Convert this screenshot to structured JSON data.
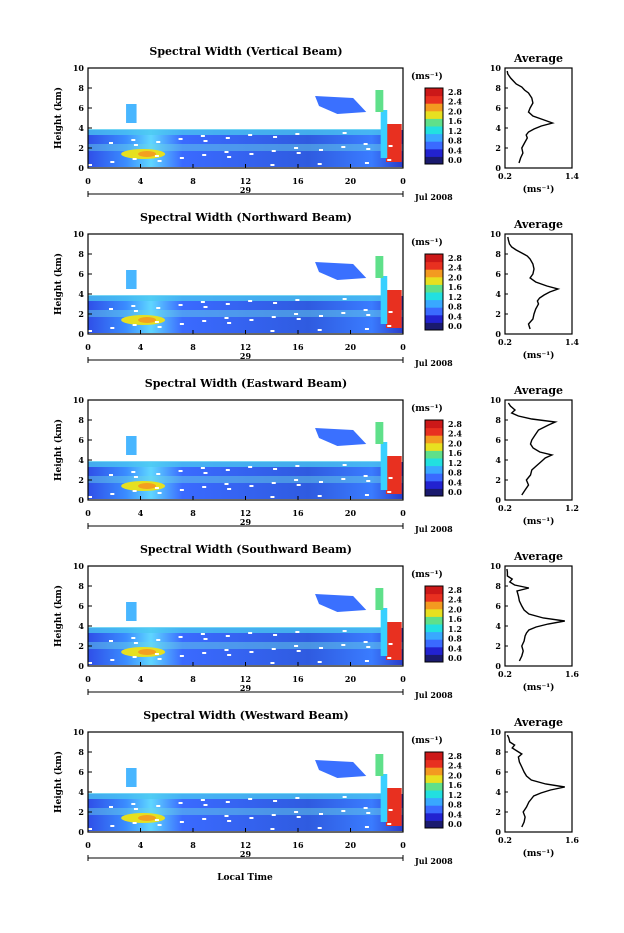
{
  "figure": {
    "bottom_xlabel": "Local Time",
    "unit_label": "(ms⁻¹)",
    "avg_title": "Average"
  },
  "colorbar": {
    "ticks": [
      "2.8",
      "2.4",
      "2.0",
      "1.6",
      "1.2",
      "0.8",
      "0.4",
      "0.0"
    ],
    "colors": [
      "#1a1a6e",
      "#2222d0",
      "#3a6aff",
      "#39a8ff",
      "#22e0e0",
      "#5fe08a",
      "#e8e020",
      "#f39a20",
      "#e83020",
      "#cc1818"
    ]
  },
  "chart_data": [
    {
      "type": "heatmap",
      "title": "Spectral Width (Vertical Beam)",
      "ylabel": "Height (km)",
      "xticks": [
        "0",
        "4",
        "8",
        "12",
        "16",
        "20",
        "0"
      ],
      "day_label": "29",
      "month_label": "Jul 2008",
      "yticks": [
        "0",
        "2",
        "4",
        "6",
        "8",
        "10"
      ],
      "xlim": [
        0,
        24
      ],
      "ylim": [
        0,
        10
      ],
      "avg_profile": {
        "type": "line",
        "title": "Average",
        "xlabel": "(ms⁻¹)",
        "xticks": [
          "0.2",
          "1.4"
        ],
        "xlim": [
          0.2,
          1.4
        ],
        "yticks": [
          "0",
          "2",
          "4",
          "6",
          "8",
          "10"
        ],
        "ylim": [
          0,
          10
        ],
        "x": [
          0.45,
          0.48,
          0.52,
          0.5,
          0.55,
          0.6,
          0.58,
          0.62,
          0.72,
          0.85,
          1.05,
          0.9,
          0.7,
          0.62,
          0.65,
          0.7,
          0.68,
          0.62,
          0.55,
          0.5,
          0.4,
          0.35,
          0.3,
          0.25,
          0.24
        ],
        "y": [
          0.5,
          1.0,
          1.5,
          2.0,
          2.5,
          3.0,
          3.3,
          3.6,
          3.9,
          4.2,
          4.5,
          4.8,
          5.2,
          5.6,
          6.0,
          6.5,
          7.0,
          7.5,
          7.8,
          8.1,
          8.4,
          8.7,
          9.0,
          9.4,
          9.7
        ]
      }
    },
    {
      "type": "heatmap",
      "title": "Spectral Width (Northward Beam)",
      "ylabel": "Height (km)",
      "xticks": [
        "0",
        "4",
        "8",
        "12",
        "16",
        "20",
        "0"
      ],
      "day_label": "29",
      "month_label": "Jul 2008",
      "yticks": [
        "0",
        "2",
        "4",
        "6",
        "8",
        "10"
      ],
      "xlim": [
        0,
        24
      ],
      "ylim": [
        0,
        10
      ],
      "avg_profile": {
        "type": "line",
        "title": "Average",
        "xlabel": "(ms⁻¹)",
        "xticks": [
          "0.2",
          "1.4"
        ],
        "xlim": [
          0.2,
          1.4
        ],
        "yticks": [
          "0",
          "2",
          "4",
          "6",
          "8",
          "10"
        ],
        "ylim": [
          0,
          10
        ],
        "x": [
          0.65,
          0.62,
          0.7,
          0.72,
          0.75,
          0.8,
          0.78,
          0.82,
          0.9,
          1.0,
          1.15,
          0.95,
          0.75,
          0.65,
          0.7,
          0.72,
          0.7,
          0.65,
          0.6,
          0.5,
          0.4,
          0.32,
          0.28,
          0.26,
          0.25
        ],
        "y": [
          0.5,
          1.0,
          1.5,
          2.0,
          2.5,
          3.0,
          3.3,
          3.6,
          3.9,
          4.2,
          4.5,
          4.8,
          5.2,
          5.6,
          6.0,
          6.5,
          7.0,
          7.5,
          7.8,
          8.1,
          8.4,
          8.7,
          9.0,
          9.4,
          9.7
        ]
      }
    },
    {
      "type": "heatmap",
      "title": "Spectral Width (Eastward Beam)",
      "ylabel": "Height (km)",
      "xticks": [
        "0",
        "4",
        "8",
        "12",
        "16",
        "20",
        "0"
      ],
      "day_label": "29",
      "month_label": "Jul 2008",
      "yticks": [
        "0",
        "2",
        "4",
        "6",
        "8",
        "10"
      ],
      "xlim": [
        0,
        24
      ],
      "ylim": [
        0,
        10
      ],
      "avg_profile": {
        "type": "line",
        "title": "Average",
        "xlabel": "(ms⁻¹)",
        "xticks": [
          "0.2",
          "1.2"
        ],
        "xlim": [
          0.2,
          1.2
        ],
        "yticks": [
          "0",
          "2",
          "4",
          "6",
          "8",
          "10"
        ],
        "ylim": [
          0,
          10
        ],
        "x": [
          0.45,
          0.5,
          0.55,
          0.52,
          0.58,
          0.6,
          0.65,
          0.7,
          0.75,
          0.8,
          0.9,
          0.72,
          0.62,
          0.58,
          0.6,
          0.65,
          0.7,
          0.85,
          0.95,
          0.6,
          0.4,
          0.3,
          0.35,
          0.28,
          0.25
        ],
        "y": [
          0.5,
          1.0,
          1.5,
          2.0,
          2.5,
          3.0,
          3.3,
          3.6,
          3.9,
          4.2,
          4.5,
          4.8,
          5.2,
          5.6,
          6.0,
          6.5,
          7.0,
          7.5,
          7.8,
          8.1,
          8.4,
          8.7,
          9.0,
          9.4,
          9.7
        ]
      }
    },
    {
      "type": "heatmap",
      "title": "Spectral Width (Southward Beam)",
      "ylabel": "Height (km)",
      "xticks": [
        "0",
        "4",
        "8",
        "12",
        "16",
        "20",
        "0"
      ],
      "day_label": "29",
      "month_label": "Jul 2008",
      "yticks": [
        "0",
        "2",
        "4",
        "6",
        "8",
        "10"
      ],
      "xlim": [
        0,
        24
      ],
      "ylim": [
        0,
        10
      ],
      "avg_profile": {
        "type": "line",
        "title": "Average",
        "xlabel": "(ms⁻¹)",
        "xticks": [
          "0.2",
          "1.6"
        ],
        "xlim": [
          0.2,
          1.6
        ],
        "yticks": [
          "0",
          "2",
          "4",
          "6",
          "8",
          "10"
        ],
        "ylim": [
          0,
          10
        ],
        "x": [
          0.5,
          0.55,
          0.58,
          0.55,
          0.6,
          0.62,
          0.65,
          0.7,
          0.85,
          1.1,
          1.45,
          1.0,
          0.7,
          0.6,
          0.55,
          0.5,
          0.48,
          0.45,
          0.7,
          0.4,
          0.3,
          0.35,
          0.25,
          0.25,
          0.24
        ],
        "y": [
          0.5,
          1.0,
          1.5,
          2.0,
          2.5,
          3.0,
          3.3,
          3.6,
          3.9,
          4.2,
          4.5,
          4.8,
          5.2,
          5.6,
          6.0,
          6.5,
          7.0,
          7.5,
          7.8,
          8.1,
          8.4,
          8.7,
          9.0,
          9.4,
          9.7
        ]
      }
    },
    {
      "type": "heatmap",
      "title": "Spectral Width (Westward Beam)",
      "ylabel": "Height (km)",
      "xticks": [
        "0",
        "4",
        "8",
        "12",
        "16",
        "20",
        "0"
      ],
      "day_label": "29",
      "month_label": "Jul 2008",
      "yticks": [
        "0",
        "2",
        "4",
        "6",
        "8",
        "10"
      ],
      "xlim": [
        0,
        24
      ],
      "ylim": [
        0,
        10
      ],
      "avg_profile": {
        "type": "line",
        "title": "Average",
        "xlabel": "(ms⁻¹)",
        "xticks": [
          "0.2",
          "1.6"
        ],
        "xlim": [
          0.2,
          1.6
        ],
        "yticks": [
          "0",
          "2",
          "4",
          "6",
          "8",
          "10"
        ],
        "ylim": [
          0,
          10
        ],
        "x": [
          0.55,
          0.6,
          0.62,
          0.58,
          0.65,
          0.7,
          0.75,
          0.8,
          0.95,
          1.15,
          1.45,
          1.05,
          0.75,
          0.65,
          0.6,
          0.55,
          0.5,
          0.48,
          0.55,
          0.45,
          0.35,
          0.4,
          0.3,
          0.28,
          0.25
        ],
        "y": [
          0.5,
          1.0,
          1.5,
          2.0,
          2.5,
          3.0,
          3.3,
          3.6,
          3.9,
          4.2,
          4.5,
          4.8,
          5.2,
          5.6,
          6.0,
          6.5,
          7.0,
          7.5,
          7.8,
          8.1,
          8.4,
          8.7,
          9.0,
          9.4,
          9.7
        ]
      }
    }
  ]
}
